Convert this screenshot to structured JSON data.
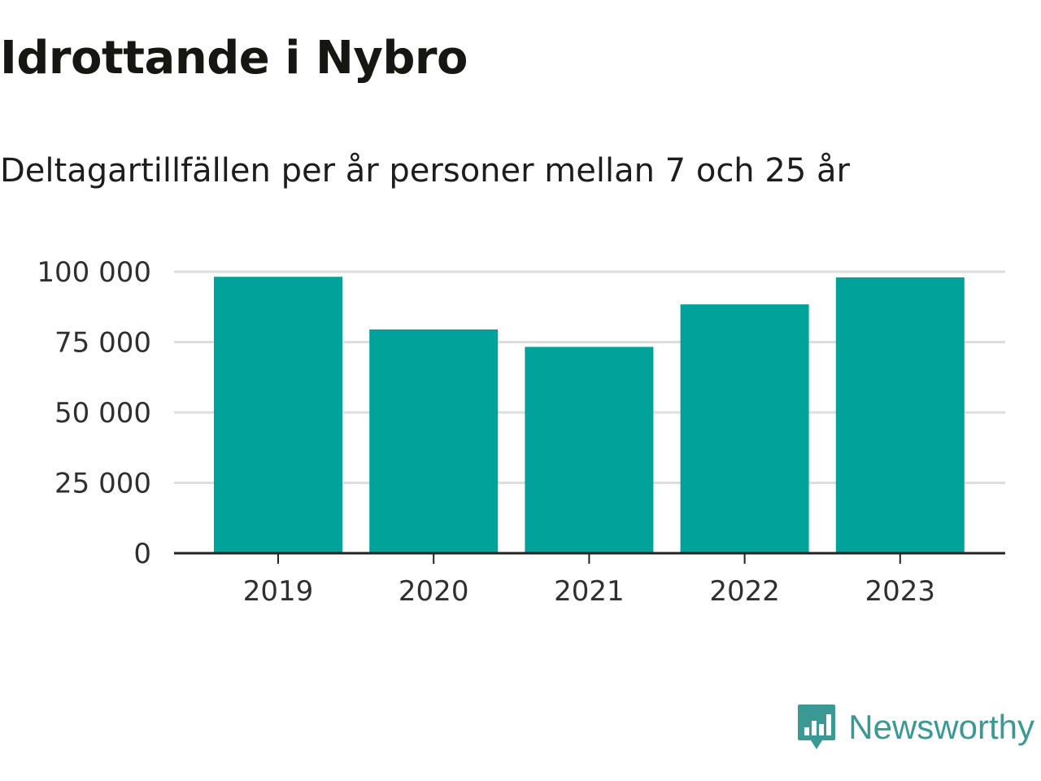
{
  "header": {
    "title": "Idrottande i Nybro",
    "subtitle": "Deltagartillfällen per år personer mellan 7 och 25 år"
  },
  "branding": {
    "name": "Newsworthy",
    "color": "#3a9a93",
    "icon": "bar-chart-speech-bubble-icon"
  },
  "colors": {
    "bar": "#00a29a",
    "grid": "#dddddd",
    "axis": "#222222"
  },
  "chart_data": {
    "type": "bar",
    "title": "Idrottande i Nybro",
    "subtitle": "Deltagartillfällen per år personer mellan 7 och 25 år",
    "xlabel": "",
    "ylabel": "",
    "categories": [
      "2019",
      "2020",
      "2021",
      "2022",
      "2023"
    ],
    "values": [
      98200,
      79500,
      73300,
      88400,
      98000
    ],
    "ylim": [
      0,
      100000
    ],
    "yticks": [
      0,
      25000,
      50000,
      75000,
      100000
    ],
    "ytick_labels": [
      "0",
      "25 000",
      "50 000",
      "75 000",
      "100 000"
    ],
    "grid": true,
    "legend": "none"
  }
}
